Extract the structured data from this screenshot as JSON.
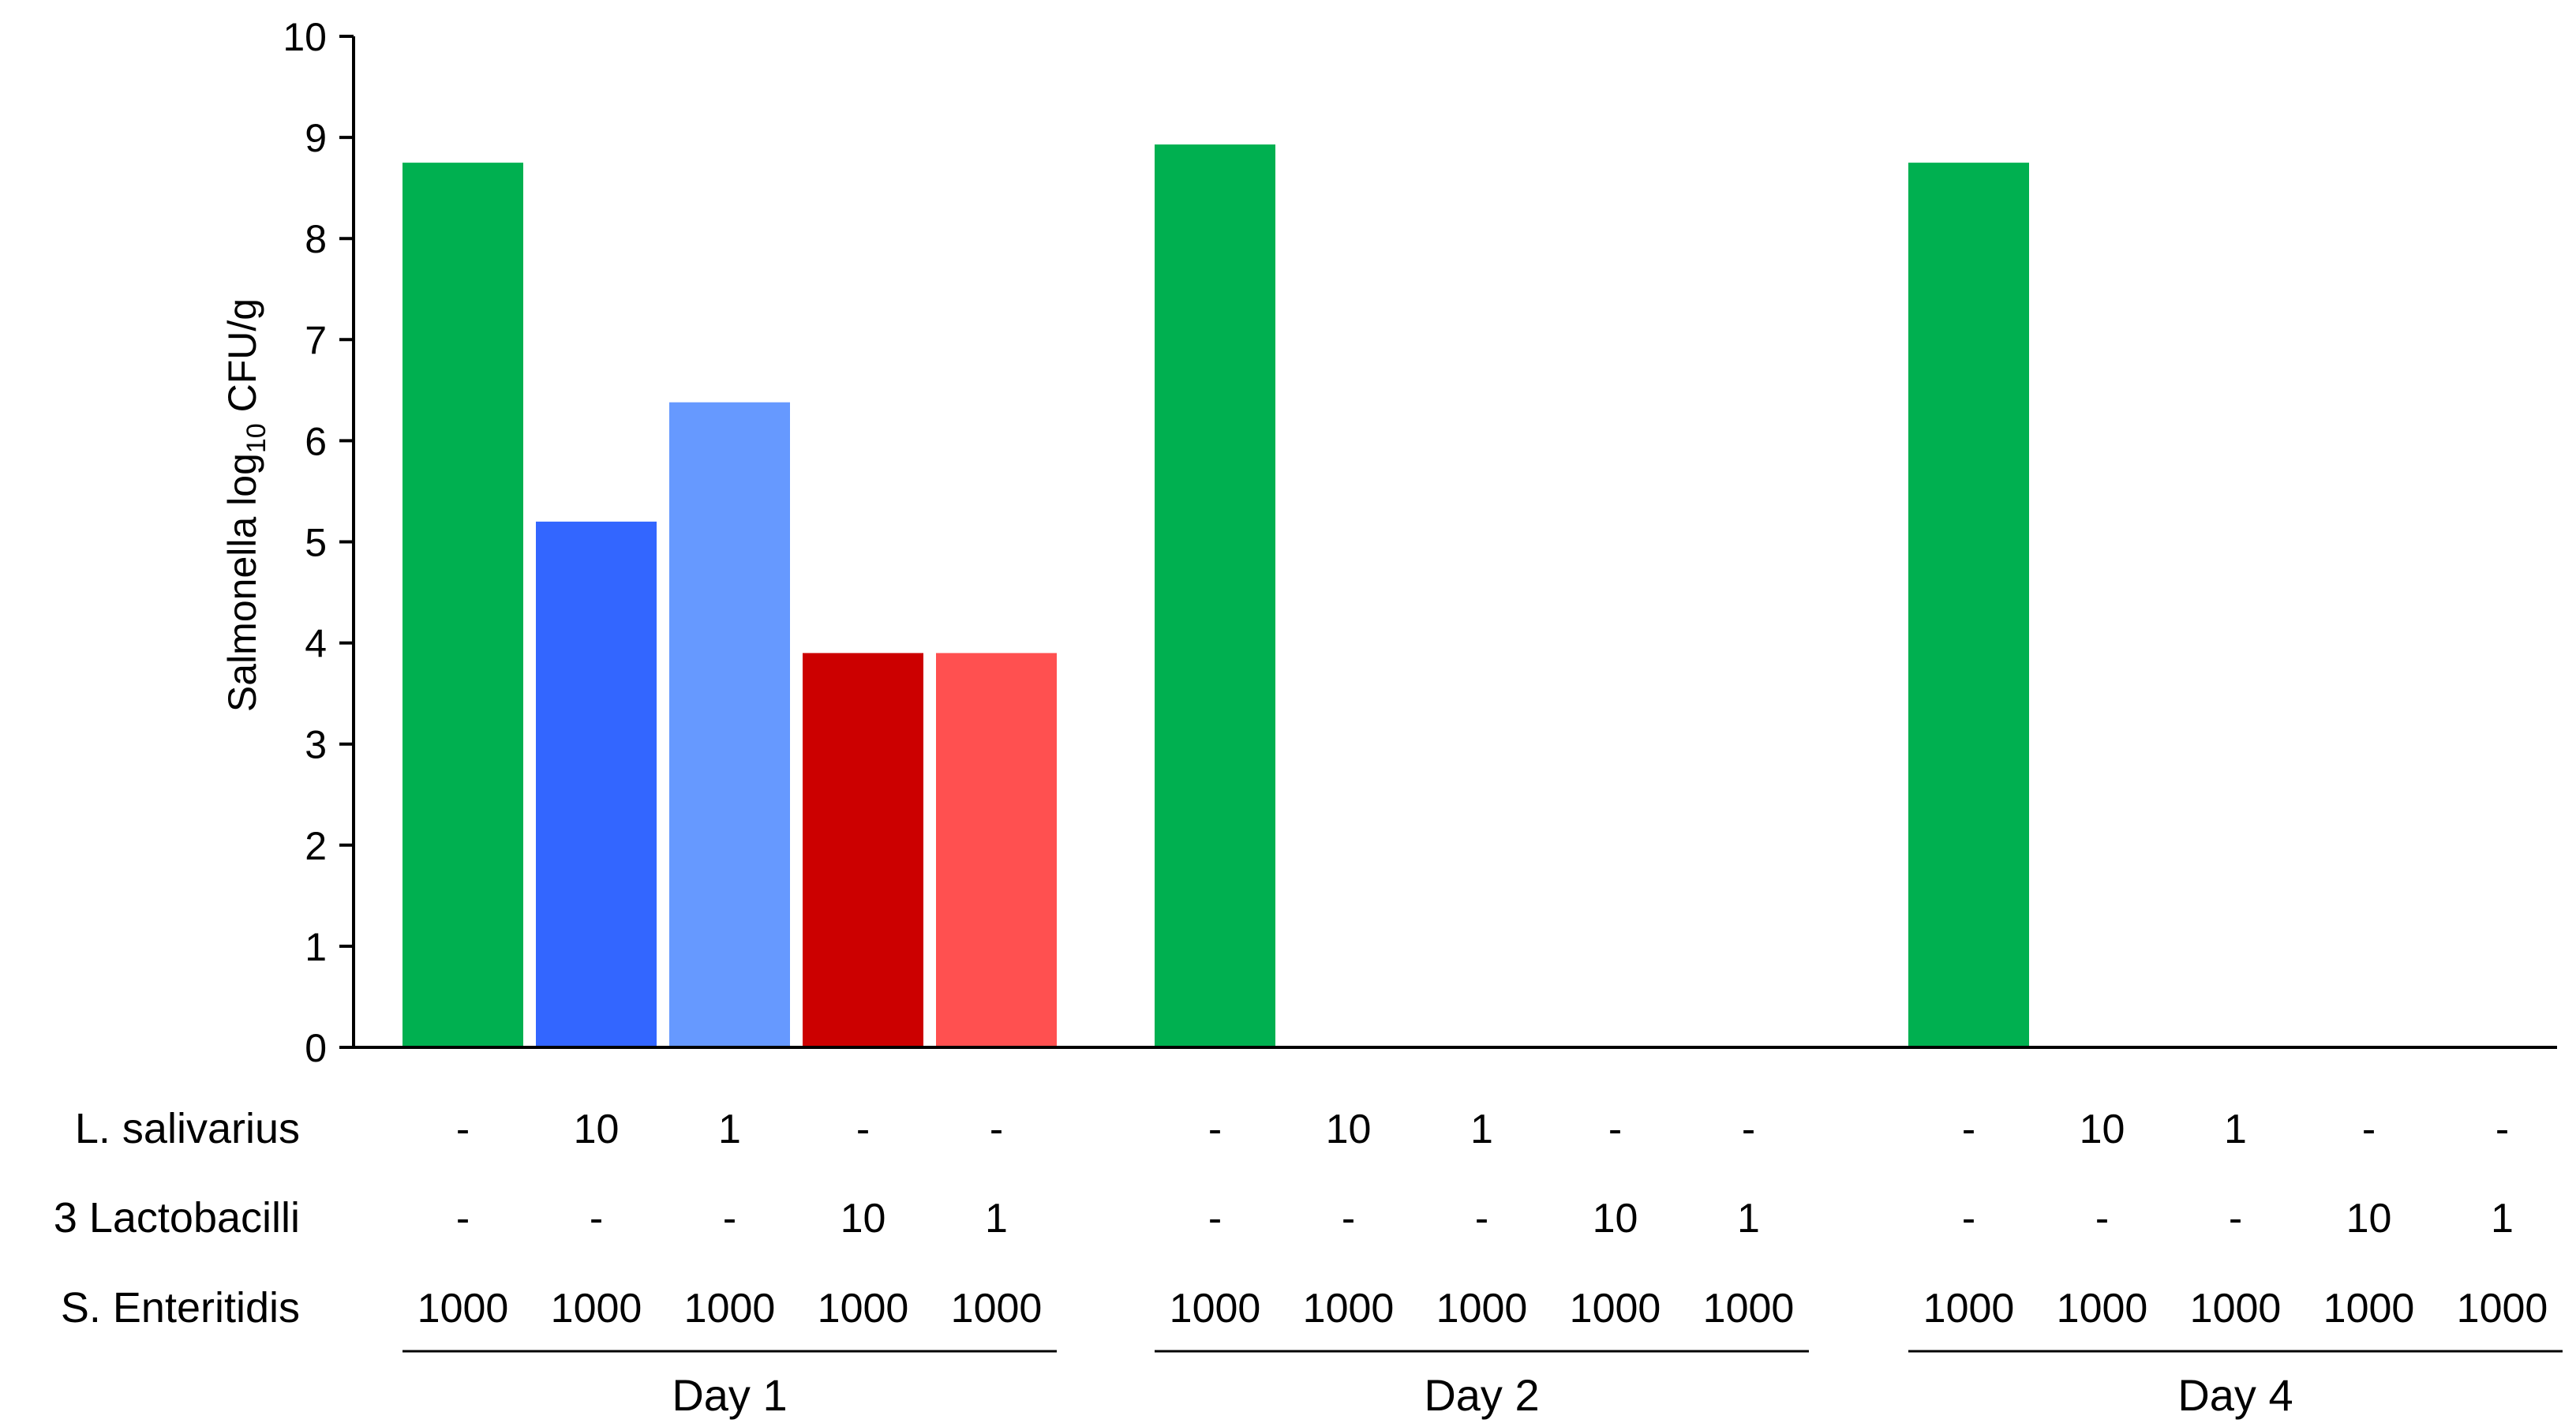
{
  "colors": {
    "control": "#00b050",
    "ls_10": "#3366ff",
    "ls_1": "#6699ff",
    "lacto_10": "#cc0000",
    "lacto_1": "#ff5050",
    "axis": "#000000"
  },
  "chart_data": {
    "type": "bar",
    "title": "",
    "ylabel": {
      "prefix": "Salmonella log",
      "subscript": "10",
      "suffix": " CFU/g"
    },
    "xlabel": "",
    "ylim": [
      0,
      10
    ],
    "yticks": [
      "0",
      "1",
      "2",
      "3",
      "4",
      "5",
      "6",
      "7",
      "8",
      "9",
      "10"
    ],
    "grid": false,
    "legend": "none",
    "row_labels": [
      "L. salivarius",
      "3 Lactobacilli",
      "S. Enteritidis"
    ],
    "groups": [
      {
        "label": "Day 1",
        "bars": [
          {
            "l_salivarius": "-",
            "lactobacilli": "-",
            "s_enteritidis": "1000",
            "value": 8.75,
            "color_key": "control"
          },
          {
            "l_salivarius": "10",
            "lactobacilli": "-",
            "s_enteritidis": "1000",
            "value": 5.2,
            "color_key": "ls_10"
          },
          {
            "l_salivarius": "1",
            "lactobacilli": "-",
            "s_enteritidis": "1000",
            "value": 6.38,
            "color_key": "ls_1"
          },
          {
            "l_salivarius": "-",
            "lactobacilli": "10",
            "s_enteritidis": "1000",
            "value": 3.9,
            "color_key": "lacto_10"
          },
          {
            "l_salivarius": "-",
            "lactobacilli": "1",
            "s_enteritidis": "1000",
            "value": 3.9,
            "color_key": "lacto_1"
          }
        ]
      },
      {
        "label": "Day 2",
        "bars": [
          {
            "l_salivarius": "-",
            "lactobacilli": "-",
            "s_enteritidis": "1000",
            "value": 8.93,
            "color_key": "control"
          },
          {
            "l_salivarius": "10",
            "lactobacilli": "-",
            "s_enteritidis": "1000",
            "value": 0,
            "color_key": "ls_10"
          },
          {
            "l_salivarius": "1",
            "lactobacilli": "-",
            "s_enteritidis": "1000",
            "value": 0,
            "color_key": "ls_1"
          },
          {
            "l_salivarius": "-",
            "lactobacilli": "10",
            "s_enteritidis": "1000",
            "value": 0,
            "color_key": "lacto_10"
          },
          {
            "l_salivarius": "-",
            "lactobacilli": "1",
            "s_enteritidis": "1000",
            "value": 0,
            "color_key": "lacto_1"
          }
        ]
      },
      {
        "label": "Day 4",
        "bars": [
          {
            "l_salivarius": "-",
            "lactobacilli": "-",
            "s_enteritidis": "1000",
            "value": 8.75,
            "color_key": "control"
          },
          {
            "l_salivarius": "10",
            "lactobacilli": "-",
            "s_enteritidis": "1000",
            "value": 0,
            "color_key": "ls_10"
          },
          {
            "l_salivarius": "1",
            "lactobacilli": "-",
            "s_enteritidis": "1000",
            "value": 0,
            "color_key": "ls_1"
          },
          {
            "l_salivarius": "-",
            "lactobacilli": "10",
            "s_enteritidis": "1000",
            "value": 0,
            "color_key": "lacto_10"
          },
          {
            "l_salivarius": "-",
            "lactobacilli": "1",
            "s_enteritidis": "1000",
            "value": 0,
            "color_key": "lacto_1"
          }
        ]
      }
    ]
  }
}
